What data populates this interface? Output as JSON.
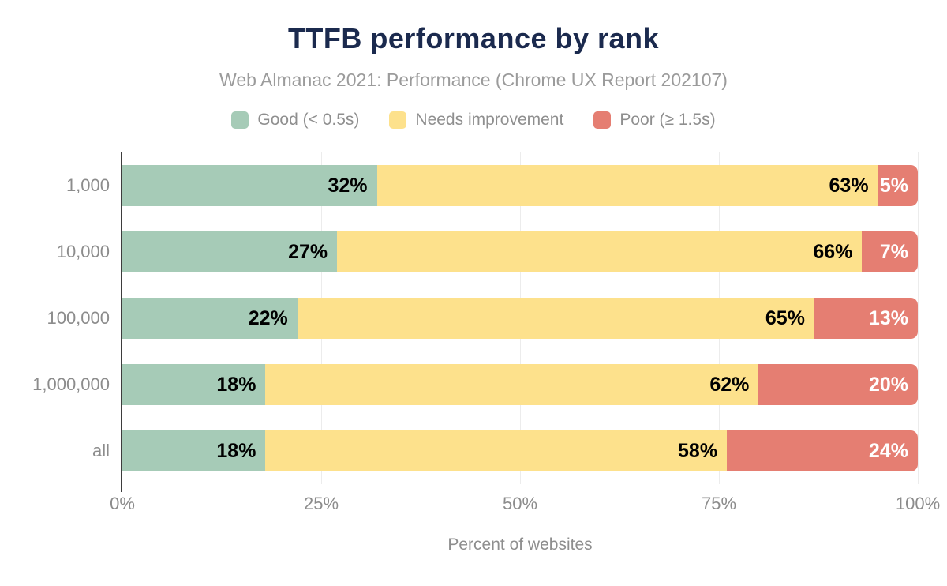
{
  "chart_data": {
    "type": "bar",
    "orientation": "horizontal-stacked",
    "title": "TTFB performance by rank",
    "subtitle": "Web Almanac 2021: Performance (Chrome UX Report 202107)",
    "categories": [
      "1,000",
      "10,000",
      "100,000",
      "1,000,000",
      "all"
    ],
    "series": [
      {
        "name": "Good (< 0.5s)",
        "color": "#a6cbb7",
        "label_color": "#000000",
        "values": [
          32,
          27,
          22,
          18,
          18
        ]
      },
      {
        "name": "Needs improvement",
        "color": "#fde18c",
        "label_color": "#000000",
        "values": [
          63,
          66,
          65,
          62,
          58
        ]
      },
      {
        "name": "Poor (≥ 1.5s)",
        "color": "#e57e72",
        "label_color": "#ffffff",
        "values": [
          5,
          7,
          13,
          20,
          24
        ]
      }
    ],
    "value_suffix": "%",
    "xlabel": "Percent of websites",
    "ylabel": "",
    "xlim": [
      0,
      100
    ],
    "x_ticks": [
      "0%",
      "25%",
      "50%",
      "75%",
      "100%"
    ],
    "grid": true,
    "legend_position": "top"
  },
  "colors": {
    "title": "#1b2a4e",
    "subtitle": "#9b9b9b",
    "axis_text": "#8c8c8c",
    "gridline": "#ececec",
    "axis_line": "#3d3d3d",
    "background": "#ffffff"
  }
}
